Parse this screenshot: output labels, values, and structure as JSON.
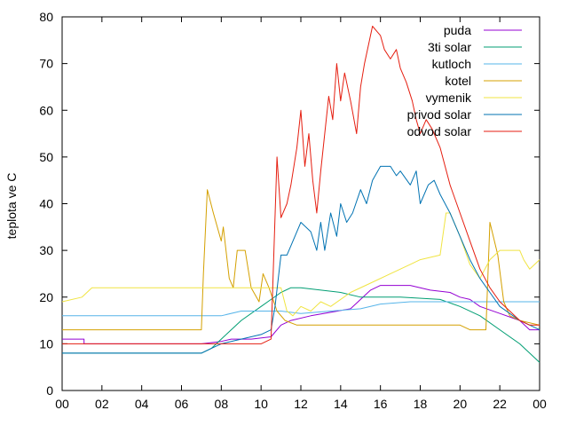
{
  "chart_data": {
    "type": "line",
    "title": "",
    "xlabel": "",
    "ylabel": "teplota ve C",
    "xlim": [
      0,
      24
    ],
    "ylim": [
      0,
      80
    ],
    "x_ticks": [
      "00",
      "02",
      "04",
      "06",
      "08",
      "10",
      "12",
      "14",
      "16",
      "18",
      "20",
      "22",
      "00"
    ],
    "y_ticks": [
      "0",
      "10",
      "20",
      "30",
      "40",
      "50",
      "60",
      "70",
      "80"
    ],
    "grid": false,
    "legend_position": "top-right",
    "series": [
      {
        "name": "puda",
        "color": "#9400d3",
        "points": [
          [
            0,
            11
          ],
          [
            1.1,
            11
          ],
          [
            1.1,
            10
          ],
          [
            7.0,
            10
          ],
          [
            8.0,
            10.5
          ],
          [
            8.5,
            11
          ],
          [
            9.5,
            11
          ],
          [
            10.5,
            11.5
          ],
          [
            11.0,
            14
          ],
          [
            11.5,
            15
          ],
          [
            12.5,
            16
          ],
          [
            14.5,
            17.5
          ],
          [
            15.5,
            21.5
          ],
          [
            16.0,
            22.5
          ],
          [
            17.5,
            22.5
          ],
          [
            18.5,
            21.5
          ],
          [
            19.5,
            21
          ],
          [
            20.0,
            20
          ],
          [
            20.5,
            19.5
          ],
          [
            21.0,
            18
          ],
          [
            22.0,
            16.5
          ],
          [
            23.0,
            15
          ],
          [
            23.5,
            13
          ],
          [
            24,
            13
          ]
        ]
      },
      {
        "name": "3ti solar",
        "color": "#009e73",
        "points": [
          [
            0,
            8
          ],
          [
            7.0,
            8
          ],
          [
            7.5,
            9
          ],
          [
            8.0,
            11
          ],
          [
            9.0,
            15
          ],
          [
            10.0,
            18
          ],
          [
            10.5,
            19.5
          ],
          [
            11.0,
            21
          ],
          [
            11.5,
            22
          ],
          [
            12.0,
            22
          ],
          [
            14.0,
            21
          ],
          [
            15.0,
            20
          ],
          [
            17.0,
            20
          ],
          [
            19.0,
            19.5
          ],
          [
            20.0,
            18
          ],
          [
            21.0,
            16
          ],
          [
            22.0,
            13
          ],
          [
            23.0,
            10
          ],
          [
            23.5,
            8
          ],
          [
            24,
            6
          ]
        ]
      },
      {
        "name": "kutloch",
        "color": "#56b4e9",
        "points": [
          [
            0,
            16
          ],
          [
            8.0,
            16
          ],
          [
            9.0,
            17
          ],
          [
            11.0,
            17
          ],
          [
            12.0,
            16.5
          ],
          [
            13.5,
            17
          ],
          [
            15.0,
            17.5
          ],
          [
            16.0,
            18.5
          ],
          [
            17.5,
            19
          ],
          [
            24,
            19
          ]
        ]
      },
      {
        "name": "kotel",
        "color": "#d4a000",
        "points": [
          [
            0,
            13
          ],
          [
            7.0,
            13
          ],
          [
            7.1,
            25
          ],
          [
            7.3,
            43
          ],
          [
            7.6,
            38
          ],
          [
            8.0,
            32
          ],
          [
            8.1,
            35
          ],
          [
            8.4,
            24
          ],
          [
            8.6,
            22
          ],
          [
            8.8,
            30
          ],
          [
            9.2,
            30
          ],
          [
            9.5,
            22
          ],
          [
            9.9,
            19
          ],
          [
            10.1,
            25
          ],
          [
            10.4,
            22
          ],
          [
            10.8,
            17
          ],
          [
            11.2,
            15
          ],
          [
            11.8,
            14
          ],
          [
            12.0,
            14
          ],
          [
            20.0,
            14
          ],
          [
            20.5,
            13
          ],
          [
            21.3,
            13
          ],
          [
            21.5,
            36
          ],
          [
            21.9,
            29
          ],
          [
            22.2,
            19
          ],
          [
            22.5,
            16
          ],
          [
            23.0,
            15
          ],
          [
            24,
            14
          ]
        ]
      },
      {
        "name": "vymenik",
        "color": "#f0e442",
        "points": [
          [
            0,
            19
          ],
          [
            1.0,
            20
          ],
          [
            1.5,
            22
          ],
          [
            7.0,
            22
          ],
          [
            11.0,
            22
          ],
          [
            11.3,
            17
          ],
          [
            11.6,
            16
          ],
          [
            12.0,
            18
          ],
          [
            12.5,
            17
          ],
          [
            13.0,
            19
          ],
          [
            13.5,
            18
          ],
          [
            14.5,
            21
          ],
          [
            15.5,
            23
          ],
          [
            16.5,
            25
          ],
          [
            17.5,
            27
          ],
          [
            18.0,
            28
          ],
          [
            19.0,
            29
          ],
          [
            19.3,
            38
          ],
          [
            19.5,
            38
          ],
          [
            20.0,
            33
          ],
          [
            20.5,
            27
          ],
          [
            21.0,
            24
          ],
          [
            21.5,
            28
          ],
          [
            22.0,
            30
          ],
          [
            23.0,
            30
          ],
          [
            23.2,
            28
          ],
          [
            23.5,
            26
          ],
          [
            24,
            28
          ]
        ]
      },
      {
        "name": "privod solar",
        "color": "#0072b2",
        "points": [
          [
            0,
            8
          ],
          [
            7.0,
            8
          ],
          [
            7.5,
            9
          ],
          [
            8.0,
            10
          ],
          [
            9.0,
            11
          ],
          [
            10.0,
            12
          ],
          [
            10.5,
            13
          ],
          [
            10.7,
            18
          ],
          [
            11.0,
            29
          ],
          [
            11.3,
            29
          ],
          [
            11.5,
            31
          ],
          [
            12.0,
            36
          ],
          [
            12.5,
            34
          ],
          [
            12.8,
            30
          ],
          [
            13.0,
            36
          ],
          [
            13.2,
            30
          ],
          [
            13.5,
            38
          ],
          [
            13.8,
            33
          ],
          [
            14.0,
            40
          ],
          [
            14.3,
            36
          ],
          [
            14.6,
            38
          ],
          [
            15.0,
            43
          ],
          [
            15.3,
            40
          ],
          [
            15.6,
            45
          ],
          [
            16.0,
            48
          ],
          [
            16.5,
            48
          ],
          [
            16.8,
            46
          ],
          [
            17.0,
            47
          ],
          [
            17.5,
            44
          ],
          [
            17.8,
            47
          ],
          [
            18.0,
            40
          ],
          [
            18.4,
            44
          ],
          [
            18.7,
            45
          ],
          [
            19.0,
            42
          ],
          [
            19.5,
            38
          ],
          [
            20.0,
            33
          ],
          [
            20.5,
            28
          ],
          [
            21.0,
            24
          ],
          [
            21.5,
            21
          ],
          [
            22.0,
            18
          ],
          [
            23.0,
            15
          ],
          [
            23.5,
            14
          ],
          [
            24,
            13
          ]
        ]
      },
      {
        "name": "odvod solar",
        "color": "#e51e10",
        "points": [
          [
            0,
            10
          ],
          [
            10.0,
            10
          ],
          [
            10.5,
            11
          ],
          [
            10.8,
            50
          ],
          [
            11.0,
            37
          ],
          [
            11.3,
            40
          ],
          [
            11.5,
            44
          ],
          [
            11.8,
            52
          ],
          [
            12.0,
            60
          ],
          [
            12.2,
            48
          ],
          [
            12.4,
            55
          ],
          [
            12.6,
            45
          ],
          [
            12.8,
            38
          ],
          [
            13.0,
            47
          ],
          [
            13.2,
            55
          ],
          [
            13.4,
            63
          ],
          [
            13.6,
            58
          ],
          [
            13.8,
            70
          ],
          [
            14.0,
            62
          ],
          [
            14.2,
            68
          ],
          [
            14.5,
            62
          ],
          [
            14.8,
            55
          ],
          [
            15.0,
            65
          ],
          [
            15.2,
            70
          ],
          [
            15.4,
            74
          ],
          [
            15.6,
            78
          ],
          [
            15.8,
            77
          ],
          [
            16.0,
            76
          ],
          [
            16.2,
            73
          ],
          [
            16.5,
            71
          ],
          [
            16.8,
            73
          ],
          [
            17.0,
            69
          ],
          [
            17.3,
            66
          ],
          [
            17.6,
            62
          ],
          [
            17.8,
            58
          ],
          [
            18.0,
            55
          ],
          [
            18.3,
            58
          ],
          [
            18.6,
            56
          ],
          [
            19.0,
            52
          ],
          [
            19.5,
            44
          ],
          [
            20.0,
            38
          ],
          [
            20.5,
            32
          ],
          [
            21.0,
            26
          ],
          [
            21.5,
            22
          ],
          [
            22.0,
            19
          ],
          [
            22.5,
            17
          ],
          [
            23.0,
            15
          ],
          [
            23.5,
            14
          ],
          [
            24,
            14
          ]
        ]
      }
    ]
  }
}
